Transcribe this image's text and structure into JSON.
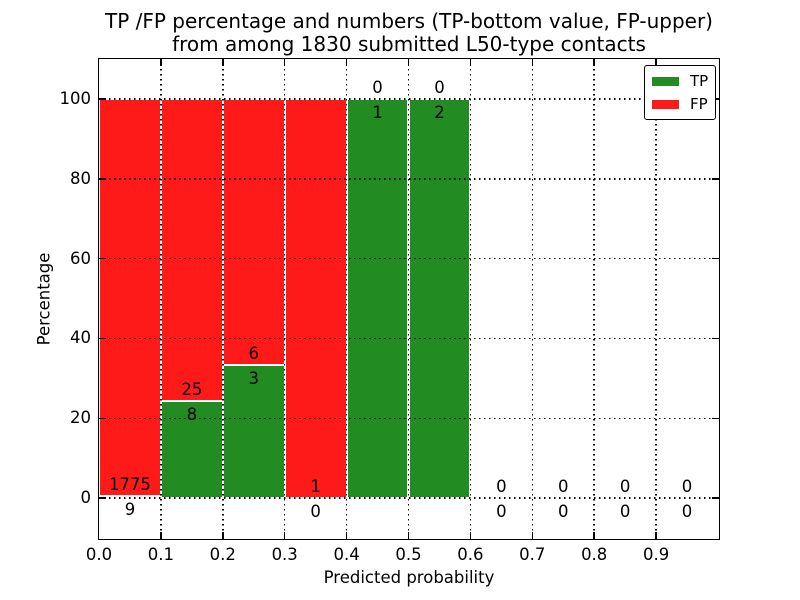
{
  "chart_data": {
    "type": "bar",
    "stacked": true,
    "unit": "percent",
    "title": "TP /FP percentage and numbers (TP-bottom value, FP-upper) from among 1830 submitted L50-type contacts",
    "title_line1": "TP /FP percentage and numbers (TP-bottom value, FP-upper)",
    "title_line2": "from among 1830 submitted L50-type contacts",
    "xlabel": "Predicted probability",
    "ylabel": "Percentage",
    "xlim": [
      0.0,
      1.0
    ],
    "ylim": [
      -10,
      110
    ],
    "x_ticks": [
      "0.0",
      "0.1",
      "0.2",
      "0.3",
      "0.4",
      "0.5",
      "0.6",
      "0.7",
      "0.8",
      "0.9"
    ],
    "y_ticks": [
      "0",
      "20",
      "40",
      "60",
      "80",
      "100"
    ],
    "grid": "dotted, both axes, drawn above bars",
    "total_contacts": 1830,
    "colors": {
      "tp": "#228b22",
      "fp": "#ff1a1a"
    },
    "legend": {
      "position": "upper right",
      "entries": [
        {
          "label": "TP",
          "color": "#228b22"
        },
        {
          "label": "FP",
          "color": "#ff1a1a"
        }
      ]
    },
    "bins": [
      {
        "range": [
          0.0,
          0.1
        ],
        "tp": 9,
        "fp": 1775,
        "tp_pct": 0.5,
        "fp_pct": 99.5
      },
      {
        "range": [
          0.1,
          0.2
        ],
        "tp": 8,
        "fp": 25,
        "tp_pct": 24.2,
        "fp_pct": 75.8
      },
      {
        "range": [
          0.2,
          0.3
        ],
        "tp": 3,
        "fp": 6,
        "tp_pct": 33.3,
        "fp_pct": 66.7
      },
      {
        "range": [
          0.3,
          0.4
        ],
        "tp": 0,
        "fp": 1,
        "tp_pct": 0,
        "fp_pct": 100
      },
      {
        "range": [
          0.4,
          0.5
        ],
        "tp": 1,
        "fp": 0,
        "tp_pct": 100,
        "fp_pct": 0
      },
      {
        "range": [
          0.5,
          0.6
        ],
        "tp": 2,
        "fp": 0,
        "tp_pct": 100,
        "fp_pct": 0
      },
      {
        "range": [
          0.6,
          0.7
        ],
        "tp": 0,
        "fp": 0,
        "tp_pct": 0,
        "fp_pct": 0
      },
      {
        "range": [
          0.7,
          0.8
        ],
        "tp": 0,
        "fp": 0,
        "tp_pct": 0,
        "fp_pct": 0
      },
      {
        "range": [
          0.8,
          0.9
        ],
        "tp": 0,
        "fp": 0,
        "tp_pct": 0,
        "fp_pct": 0
      },
      {
        "range": [
          0.9,
          1.0
        ],
        "tp": 0,
        "fp": 0,
        "tp_pct": 0,
        "fp_pct": 0
      }
    ]
  }
}
